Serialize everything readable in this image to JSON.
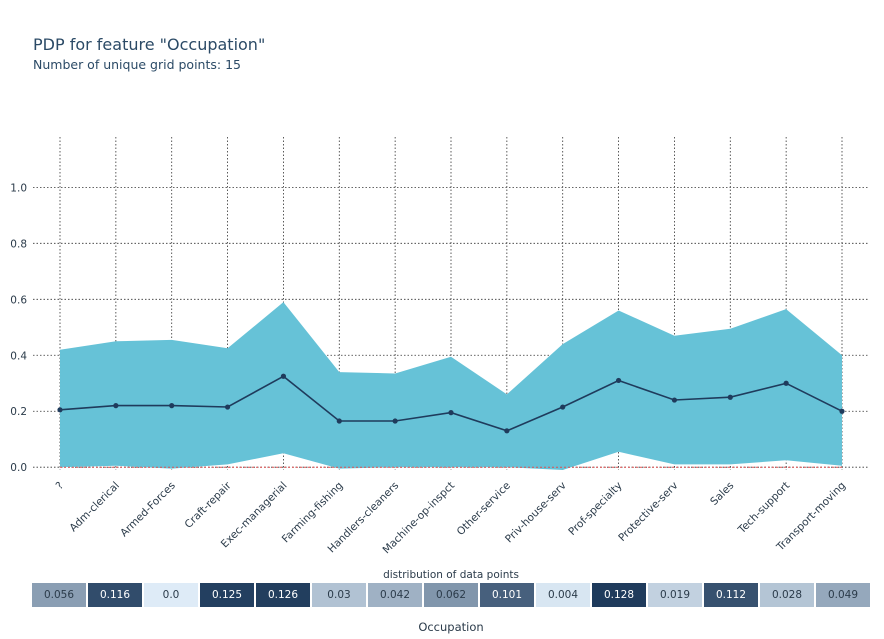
{
  "title": "PDP for feature \"Occupation\"",
  "subtitle": "Number of unique grid points: 15",
  "chart_data": {
    "type": "line",
    "categories": [
      "?",
      "Adm-clerical",
      "Armed-Forces",
      "Craft-repair",
      "Exec-managerial",
      "Farming-fishing",
      "Handlers-cleaners",
      "Machine-op-inspct",
      "Other-service",
      "Priv-house-serv",
      "Prof-specialty",
      "Protective-serv",
      "Sales",
      "Tech-support",
      "Transport-moving"
    ],
    "series": [
      {
        "values": [
          0.205,
          0.22,
          0.22,
          0.215,
          0.325,
          0.165,
          0.165,
          0.195,
          0.13,
          0.215,
          0.31,
          0.24,
          0.25,
          0.3,
          0.2
        ]
      }
    ],
    "band_upper": [
      0.42,
      0.45,
      0.455,
      0.425,
      0.59,
      0.34,
      0.335,
      0.395,
      0.26,
      0.44,
      0.56,
      0.47,
      0.495,
      0.565,
      0.4
    ],
    "band_lower": [
      0.0,
      0.005,
      -0.005,
      0.01,
      0.05,
      -0.005,
      0.0,
      0.0,
      0.0,
      -0.01,
      0.055,
      0.01,
      0.01,
      0.025,
      0.005
    ],
    "yticks": [
      "0.0",
      "0.2",
      "0.4",
      "0.6",
      "0.8",
      "1.0"
    ],
    "ylim": [
      -0.01,
      1.18
    ],
    "grid": true,
    "colors": {
      "line": "#1f3b5c",
      "band": "#66c2d7",
      "zero_line": "#e05050"
    },
    "distribution": {
      "title": "distribution of data points",
      "values": [
        "0.056",
        "0.116",
        "0.0",
        "0.125",
        "0.126",
        "0.03",
        "0.042",
        "0.062",
        "0.101",
        "0.004",
        "0.128",
        "0.019",
        "0.112",
        "0.028",
        "0.049"
      ]
    },
    "xlabel": "Occupation"
  }
}
